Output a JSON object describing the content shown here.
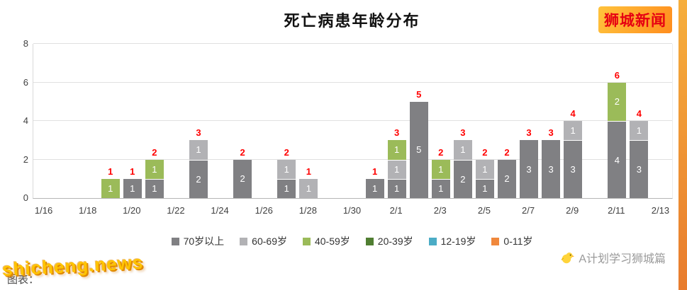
{
  "page": {
    "title": "死亡病患年龄分布",
    "logo": "狮城新闻",
    "watermark_caption": "图表：",
    "watermark_site": "shicheng.news",
    "credit": "A计划学习狮城篇"
  },
  "colors": {
    "total_label": "#ff0000",
    "logo_text": "#e60012",
    "logo_bg_from": "#ffc33c",
    "logo_bg_to": "#ff8d1e",
    "stripe_from": "#f6ae3c",
    "stripe_to": "#e87c2e",
    "watermark": "#ffc400"
  },
  "chart_data": {
    "type": "bar",
    "stacked": true,
    "title": "死亡病患年龄分布",
    "xlabel": "",
    "ylabel": "",
    "ylim": [
      0,
      8
    ],
    "yticks": [
      0,
      2,
      4,
      6,
      8
    ],
    "grid": true,
    "legend_position": "bottom",
    "x_tick_every": 2,
    "x_tick_labels": [
      "1/16",
      "1/18",
      "1/20",
      "1/22",
      "1/24",
      "1/26",
      "1/28",
      "1/30",
      "2/1",
      "2/3",
      "2/5",
      "2/7",
      "2/9",
      "2/11",
      "2/13"
    ],
    "x_categories": [
      "1/16",
      "1/17",
      "1/18",
      "1/19",
      "1/20",
      "1/21",
      "1/22",
      "1/23",
      "1/24",
      "1/25",
      "1/26",
      "1/27",
      "1/28",
      "1/29",
      "1/30",
      "1/31",
      "2/1",
      "2/2",
      "2/3",
      "2/4",
      "2/5",
      "2/6",
      "2/7",
      "2/8",
      "2/9",
      "2/10",
      "2/11",
      "2/12",
      "2/13"
    ],
    "series_colors": {
      "70岁以上": "#808083",
      "60-69岁": "#b2b2b5",
      "40-59岁": "#9bbb59",
      "20-39岁": "#507e32",
      "12-19岁": "#4bacc6",
      "0-11岁": "#f0883c"
    },
    "legend": [
      {
        "label": "70岁以上",
        "color": "#808083"
      },
      {
        "label": "60-69岁",
        "color": "#b2b2b5"
      },
      {
        "label": "40-59岁",
        "color": "#9bbb59"
      },
      {
        "label": "20-39岁",
        "color": "#507e32"
      },
      {
        "label": "12-19岁",
        "color": "#4bacc6"
      },
      {
        "label": "0-11岁",
        "color": "#f0883c"
      }
    ],
    "bars": [
      {
        "x": "1/19",
        "total": 1,
        "segments": [
          {
            "group": "40-59岁",
            "value": 1
          }
        ]
      },
      {
        "x": "1/20",
        "total": 1,
        "segments": [
          {
            "group": "70岁以上",
            "value": 1
          }
        ]
      },
      {
        "x": "1/21",
        "total": 2,
        "segments": [
          {
            "group": "70岁以上",
            "value": 1
          },
          {
            "group": "40-59岁",
            "value": 1
          }
        ]
      },
      {
        "x": "1/23",
        "total": 3,
        "segments": [
          {
            "group": "70岁以上",
            "value": 2
          },
          {
            "group": "60-69岁",
            "value": 1
          }
        ]
      },
      {
        "x": "1/25",
        "total": 2,
        "segments": [
          {
            "group": "70岁以上",
            "value": 2
          }
        ]
      },
      {
        "x": "1/27",
        "total": 2,
        "segments": [
          {
            "group": "70岁以上",
            "value": 1
          },
          {
            "group": "60-69岁",
            "value": 1
          }
        ]
      },
      {
        "x": "1/28",
        "total": 1,
        "segments": [
          {
            "group": "60-69岁",
            "value": 1
          }
        ]
      },
      {
        "x": "1/31",
        "total": 1,
        "segments": [
          {
            "group": "70岁以上",
            "value": 1
          }
        ]
      },
      {
        "x": "2/1",
        "total": 3,
        "segments": [
          {
            "group": "70岁以上",
            "value": 1
          },
          {
            "group": "60-69岁",
            "value": 1
          },
          {
            "group": "40-59岁",
            "value": 1
          }
        ]
      },
      {
        "x": "2/2",
        "total": 5,
        "segments": [
          {
            "group": "70岁以上",
            "value": 5
          }
        ]
      },
      {
        "x": "2/3",
        "total": 2,
        "segments": [
          {
            "group": "70岁以上",
            "value": 1
          },
          {
            "group": "40-59岁",
            "value": 1
          }
        ]
      },
      {
        "x": "2/4",
        "total": 3,
        "segments": [
          {
            "group": "70岁以上",
            "value": 2
          },
          {
            "group": "60-69岁",
            "value": 1
          }
        ]
      },
      {
        "x": "2/5",
        "total": 2,
        "segments": [
          {
            "group": "70岁以上",
            "value": 1
          },
          {
            "group": "60-69岁",
            "value": 1
          }
        ]
      },
      {
        "x": "2/6",
        "total": 2,
        "segments": [
          {
            "group": "70岁以上",
            "value": 2
          }
        ]
      },
      {
        "x": "2/7",
        "total": 3,
        "segments": [
          {
            "group": "70岁以上",
            "value": 3
          }
        ]
      },
      {
        "x": "2/8",
        "total": 3,
        "segments": [
          {
            "group": "70岁以上",
            "value": 3
          }
        ]
      },
      {
        "x": "2/9",
        "total": 4,
        "segments": [
          {
            "group": "70岁以上",
            "value": 3
          },
          {
            "group": "60-69岁",
            "value": 1
          }
        ]
      },
      {
        "x": "2/11",
        "total": 6,
        "segments": [
          {
            "group": "70岁以上",
            "value": 4
          },
          {
            "group": "40-59岁",
            "value": 2
          }
        ]
      },
      {
        "x": "2/12",
        "total": 4,
        "segments": [
          {
            "group": "70岁以上",
            "value": 3
          },
          {
            "group": "60-69岁",
            "value": 1
          }
        ]
      }
    ]
  }
}
